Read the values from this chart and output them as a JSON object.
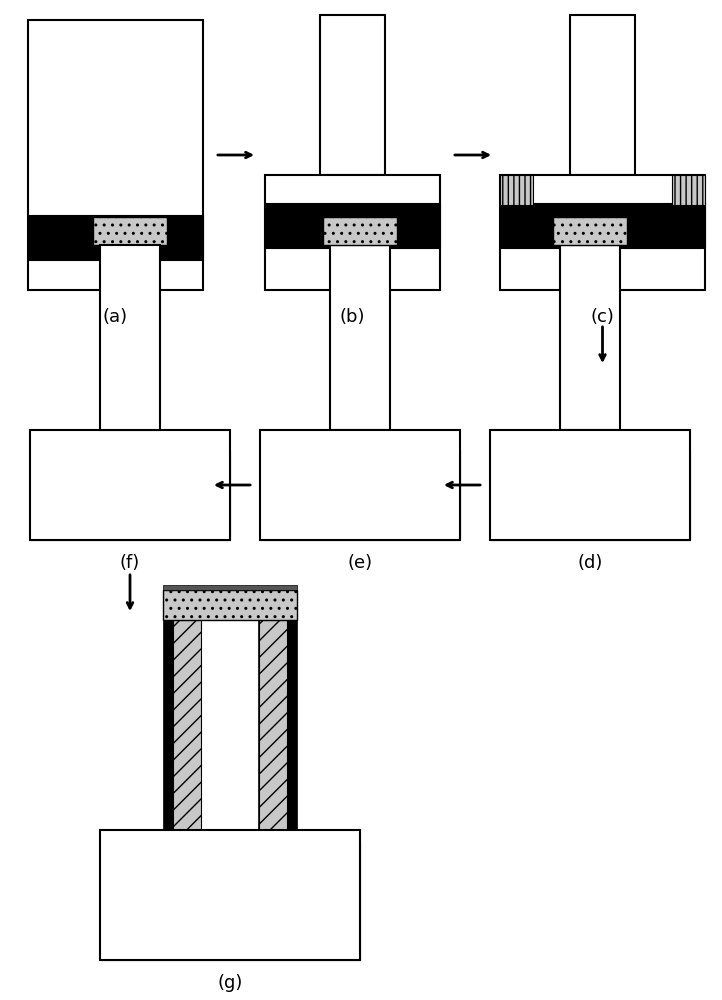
{
  "fig_width": 7.22,
  "fig_height": 10.0,
  "labels": [
    "(a)",
    "(b)",
    "(c)",
    "(d)",
    "(e)",
    "(f)",
    "(g)"
  ],
  "black": "#000000",
  "white": "#ffffff",
  "light_gray": "#c8c8c8",
  "mid_gray": "#a0a0a0",
  "hatch_color": "#888888"
}
